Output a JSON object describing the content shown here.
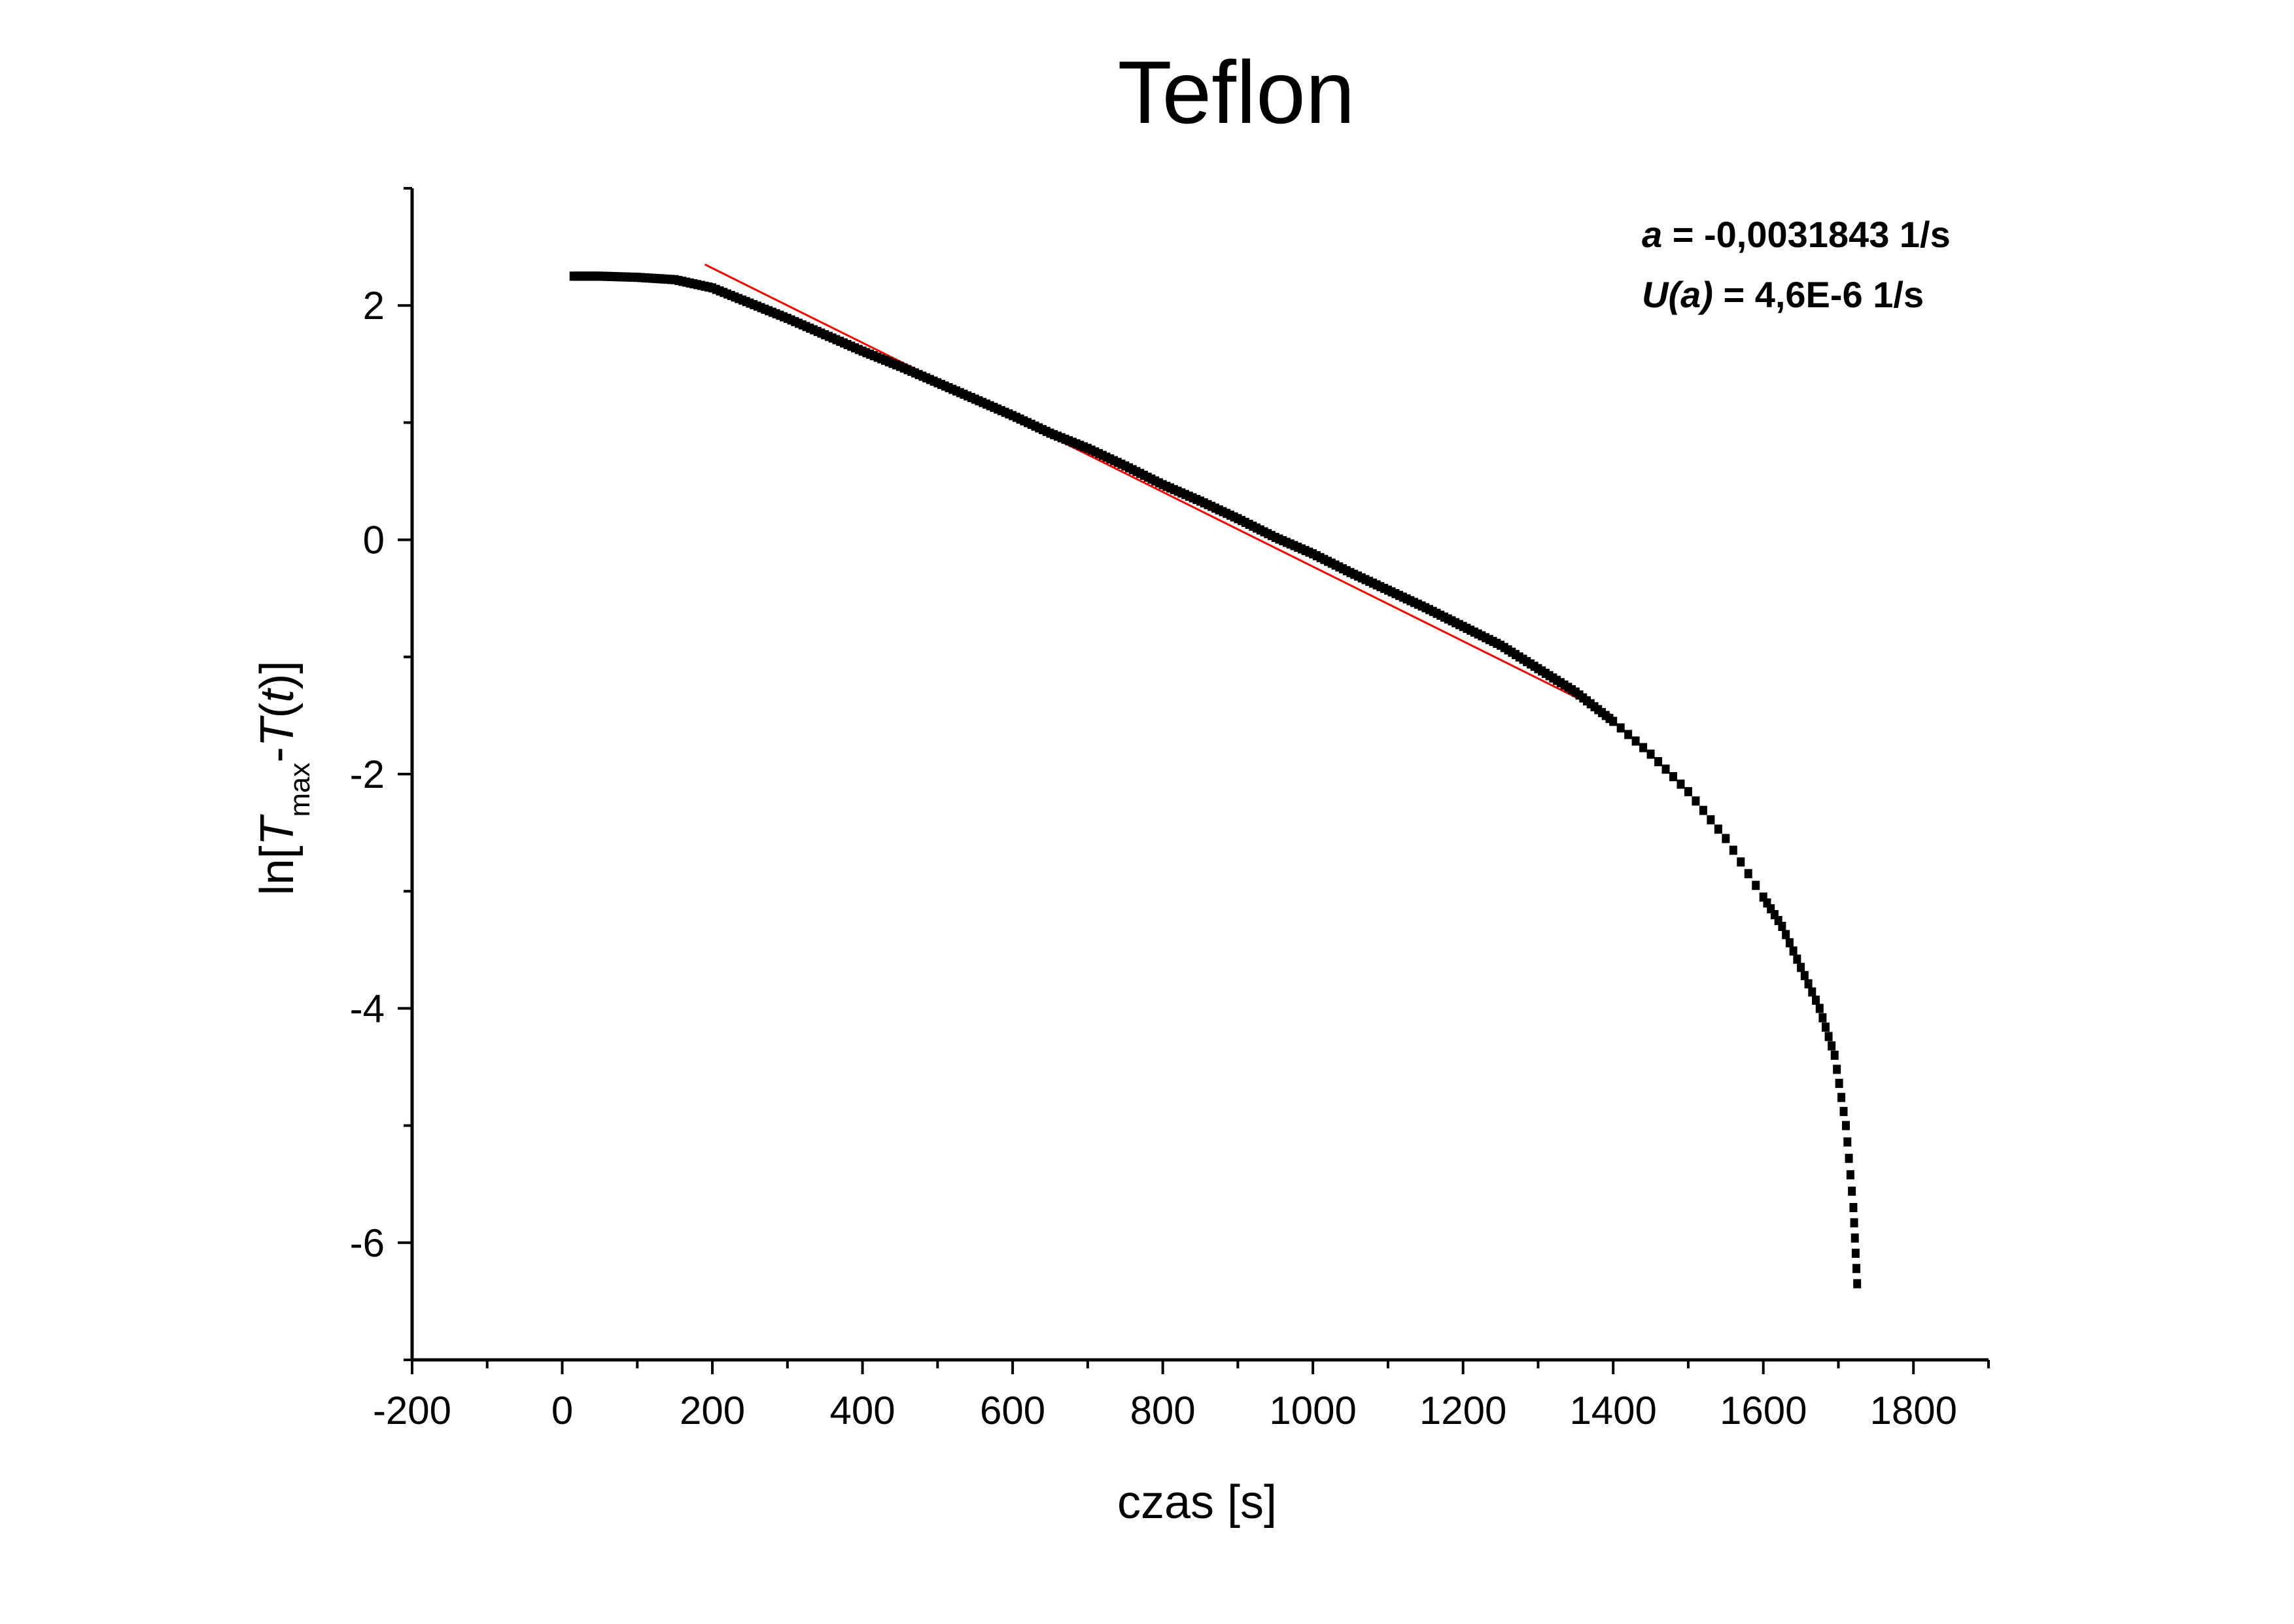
{
  "chart_data": {
    "type": "scatter",
    "title": "Teflon",
    "xlabel": "czas [s]",
    "ylabel": {
      "prefix": "ln[",
      "t_symbol": "T",
      "sub": "max",
      "mid": "-",
      "t2_symbol": "T",
      "open_paren": "(",
      "t_var": "t",
      "close": ")]"
    },
    "xlim": [
      -200,
      1900
    ],
    "ylim": [
      -7,
      3
    ],
    "x_ticks": [
      -200,
      0,
      200,
      400,
      600,
      800,
      1000,
      1200,
      1400,
      1600,
      1800
    ],
    "x_tick_labels": [
      "-200",
      "0",
      "200",
      "400",
      "600",
      "800",
      "1000",
      "1200",
      "1400",
      "1600",
      "1800"
    ],
    "y_ticks": [
      -6,
      -4,
      -2,
      0,
      2
    ],
    "y_tick_labels": [
      "-6",
      "-4",
      "-2",
      "0",
      "2"
    ],
    "x_minor_step": 100,
    "y_minor_step": 1,
    "grid": false,
    "legend": "none",
    "annotation": {
      "line1_var": "a",
      "line1_rest": " = -0,0031843 1/s",
      "line2_var": "U(a)",
      "line2_rest": " = 4,6E-6 1/s"
    },
    "series": [
      {
        "kind": "measured",
        "color": "#000000",
        "points": [
          [
            15,
            2.25
          ],
          [
            50,
            2.25
          ],
          [
            100,
            2.24
          ],
          [
            150,
            2.22
          ],
          [
            200,
            2.15
          ],
          [
            250,
            2.02
          ],
          [
            300,
            1.89
          ],
          [
            350,
            1.75
          ],
          [
            400,
            1.61
          ],
          [
            450,
            1.48
          ],
          [
            500,
            1.34
          ],
          [
            550,
            1.2
          ],
          [
            600,
            1.06
          ],
          [
            650,
            0.91
          ],
          [
            700,
            0.78
          ],
          [
            750,
            0.63
          ],
          [
            800,
            0.47
          ],
          [
            850,
            0.33
          ],
          [
            900,
            0.18
          ],
          [
            950,
            0.02
          ],
          [
            1000,
            -0.12
          ],
          [
            1050,
            -0.28
          ],
          [
            1100,
            -0.43
          ],
          [
            1150,
            -0.58
          ],
          [
            1200,
            -0.74
          ],
          [
            1250,
            -0.9
          ],
          [
            1300,
            -1.1
          ],
          [
            1350,
            -1.3
          ],
          [
            1400,
            -1.55
          ],
          [
            1450,
            -1.83
          ],
          [
            1500,
            -2.15
          ],
          [
            1550,
            -2.55
          ],
          [
            1600,
            -3.05
          ],
          [
            1625,
            -3.3
          ],
          [
            1650,
            -3.65
          ],
          [
            1675,
            -4.0
          ],
          [
            1695,
            -4.4
          ],
          [
            1710,
            -5.0
          ],
          [
            1720,
            -5.7
          ],
          [
            1725,
            -6.35
          ]
        ]
      },
      {
        "kind": "linear fit",
        "color": "#ff0000",
        "x_range": [
          190,
          1400
        ],
        "slope": -0.0031843,
        "intercept": 2.955
      }
    ]
  }
}
